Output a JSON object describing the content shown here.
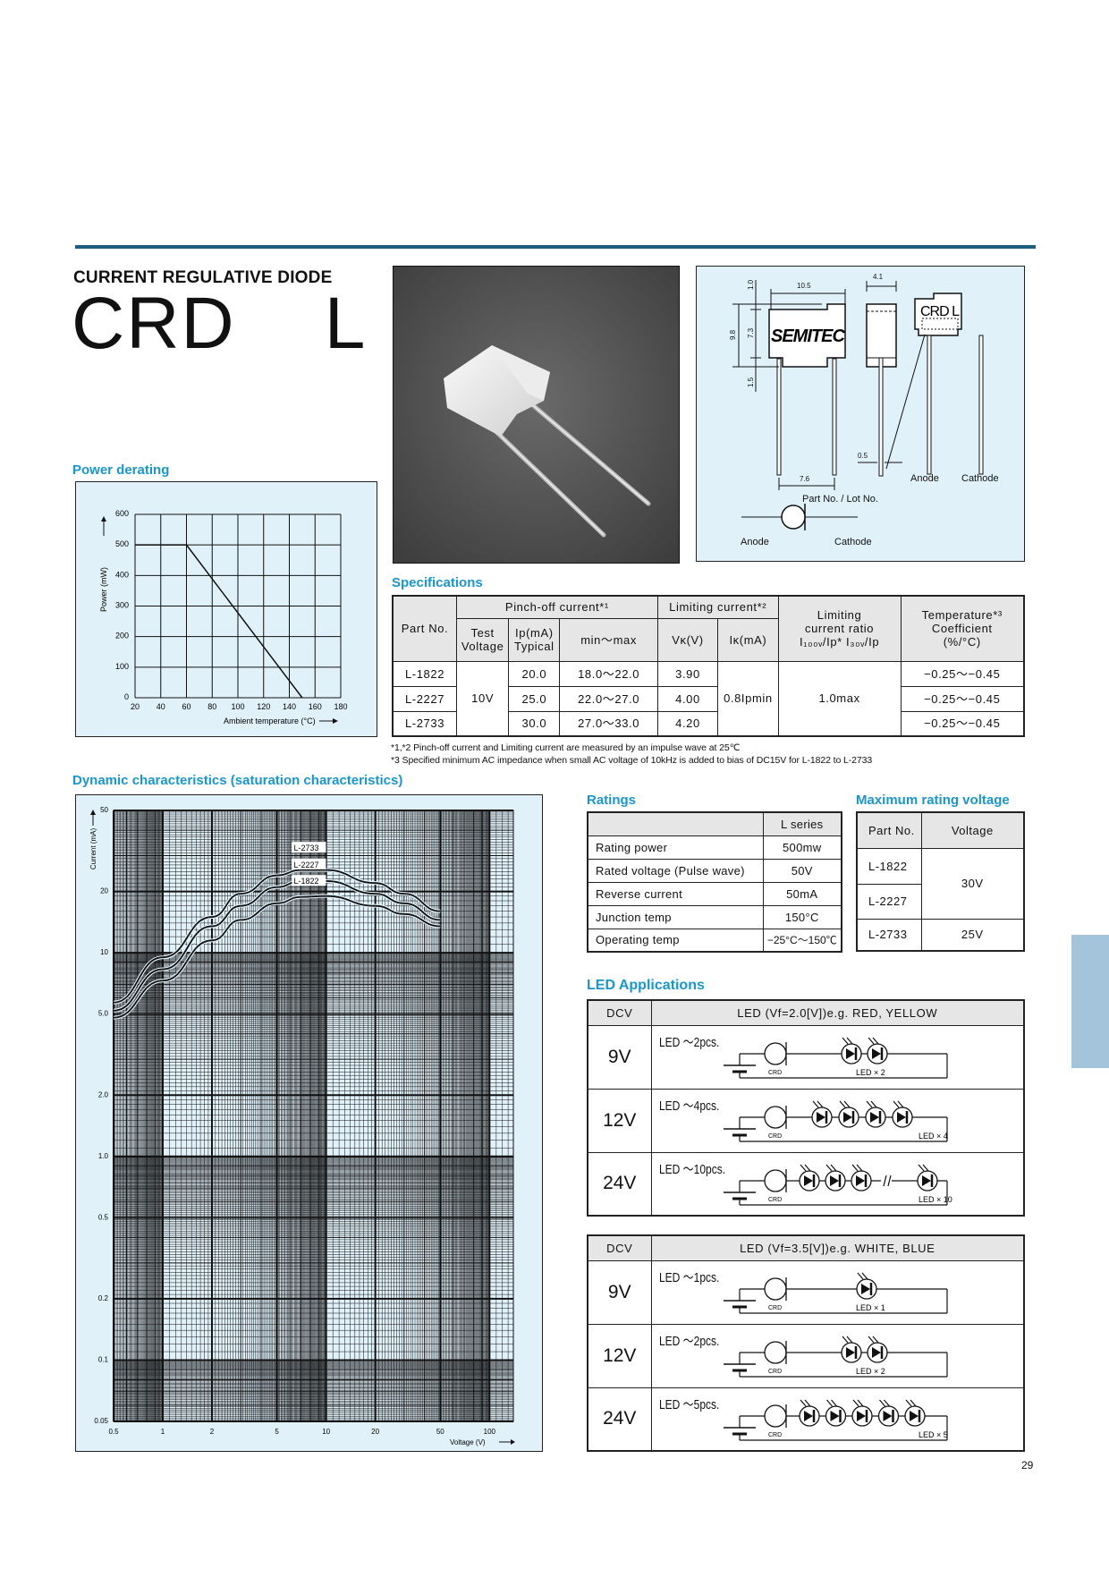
{
  "header": {
    "subtitle": "CURRENT REGULATIVE DIODE",
    "title": "CRD    L",
    "rule_color": "#1b5e80",
    "accent_color": "#1a96cc",
    "panel_color": "#e1f1fa"
  },
  "outline_drawing": {
    "logo": "SEMITEC",
    "marking": "CRD L",
    "dims": {
      "width": "10.5",
      "thickness": "4.1",
      "top": "1.0",
      "height": "9.8",
      "body": "7.3",
      "bottom": "1.5",
      "lead": "0.5",
      "pitch": "7.6"
    },
    "anode": "Anode",
    "cathode": "Cathode",
    "part_lot": "Part No. / Lot No.",
    "symbol_anode": "Anode",
    "symbol_cathode": "Cathode"
  },
  "power_derating": {
    "heading": "Power derating",
    "chart_data": {
      "type": "line",
      "xlabel": "Ambient temperature  (°C)",
      "ylabel": "Power  (mW)",
      "xlim": [
        20,
        180
      ],
      "ylim": [
        0,
        600
      ],
      "xticks": [
        "20",
        "40",
        "60",
        "80",
        "100",
        "120",
        "140",
        "160",
        "180"
      ],
      "yticks": [
        "0",
        "100",
        "200",
        "300",
        "400",
        "500",
        "600"
      ],
      "grid": true,
      "series": [
        {
          "x": [
            20,
            60,
            150
          ],
          "y": [
            500,
            500,
            0
          ]
        }
      ]
    }
  },
  "specifications": {
    "heading": "Specifications",
    "headers": {
      "part_no": "Part No.",
      "pinch_off": "Pinch-off current*¹",
      "limiting": "Limiting current*²",
      "ratio_1": "Limiting",
      "ratio_2": "current ratio",
      "ratio_3": "I₁₀₀ᵥ/Ip* I₃₀ᵥ/Ip",
      "temp_1": "Temperature*³",
      "temp_2": "Coefficient",
      "temp_3": "(%/°C)",
      "test_voltage_1": "Test",
      "test_voltage_2": "Voltage",
      "ip_1": "Ip(mA)",
      "ip_2": "Typical",
      "minmax": "min～max",
      "vk": "Vκ(V)",
      "ik": "Iκ(mA)"
    },
    "test_voltage": "10V",
    "ik": "0.8Ipmin",
    "ratio": "1.0max",
    "rows": [
      {
        "part": "L-1822",
        "ip": "20.0",
        "range": "18.0～22.0",
        "vk": "3.90",
        "temp": "−0.25～−0.45"
      },
      {
        "part": "L-2227",
        "ip": "25.0",
        "range": "22.0～27.0",
        "vk": "4.00",
        "temp": "−0.25～−0.45"
      },
      {
        "part": "L-2733",
        "ip": "30.0",
        "range": "27.0～33.0",
        "vk": "4.20",
        "temp": "−0.25～−0.45"
      }
    ],
    "notes": [
      "*1,*2 Pinch-off  current and Limiting  current  are  measured  by  an impulse  wave  at  25℃",
      "*3  Specified minimum AC impedance when small AC voltage of 10kHz is added to bias of DC15V for L-1822 to L-2733"
    ]
  },
  "dynamic": {
    "heading": "Dynamic characteristics (saturation characteristics)",
    "chart_data": {
      "type": "line",
      "xlabel": "Voltage  (V)",
      "ylabel": "Current (mA)",
      "xscale": "log",
      "yscale": "log",
      "xlim": [
        0.5,
        140
      ],
      "ylim": [
        0.05,
        50
      ],
      "xticks": [
        "0.5",
        "1",
        "2",
        "5",
        "10",
        "20",
        "50",
        "100"
      ],
      "yticks": [
        "50",
        "20",
        "10",
        "5.0",
        "2.0",
        "1.0",
        "0.5",
        "0.2",
        "0.1",
        "0.05"
      ],
      "grid": true,
      "x": [
        0.5,
        1,
        2,
        3,
        5,
        7,
        10,
        20,
        30,
        50
      ],
      "series": [
        {
          "name": "L-2733",
          "values": [
            5.7,
            9.5,
            15,
            19.5,
            24,
            25.5,
            25.5,
            22,
            19.5,
            16
          ]
        },
        {
          "name": "L-2227",
          "values": [
            5.2,
            8.3,
            13.5,
            17,
            21,
            22.5,
            22.5,
            19.5,
            17.5,
            14.5
          ]
        },
        {
          "name": "L-1822",
          "values": [
            4.8,
            7.3,
            11.5,
            14.5,
            17.5,
            18.8,
            19,
            17,
            15.5,
            13.5
          ]
        }
      ]
    }
  },
  "ratings": {
    "heading": "Ratings",
    "column": "L series",
    "rows": [
      {
        "label": "Rating power",
        "value": "500mw"
      },
      {
        "label": "Rated voltage (Pulse wave)",
        "value": "50V"
      },
      {
        "label": "Reverse current",
        "value": "50mA"
      },
      {
        "label": "Junction temp",
        "value": "150°C"
      },
      {
        "label": "Operating temp",
        "value": "−25°C～150℃"
      }
    ]
  },
  "max_voltage": {
    "heading": "Maximum rating voltage",
    "headers": {
      "part": "Part No.",
      "voltage": "Voltage"
    },
    "parts": [
      "L-1822",
      "L-2227",
      "L-2733"
    ],
    "v_30": "30V",
    "v_25": "25V"
  },
  "led_apps": {
    "heading": "LED Applications",
    "tables": [
      {
        "dcv": "DCV",
        "title": "LED (Vf=2.0[V])e.g. RED, YELLOW",
        "rows": [
          {
            "v": "9V",
            "count": "LED ～2pcs.",
            "crd": "CRD",
            "label": "LED × 2"
          },
          {
            "v": "12V",
            "count": "LED ～4pcs.",
            "crd": "CRD",
            "label": "LED × 4"
          },
          {
            "v": "24V",
            "count": "LED ～10pcs.",
            "crd": "CRD",
            "label": "LED × 10"
          }
        ]
      },
      {
        "dcv": "DCV",
        "title": "LED (Vf=3.5[V])e.g. WHITE, BLUE",
        "rows": [
          {
            "v": "9V",
            "count": "LED ～1pcs.",
            "crd": "CRD",
            "label": "LED × 1"
          },
          {
            "v": "12V",
            "count": "LED ～2pcs.",
            "crd": "CRD",
            "label": "LED × 2"
          },
          {
            "v": "24V",
            "count": "LED ～5pcs.",
            "crd": "CRD",
            "label": "LED × 5"
          }
        ]
      }
    ]
  },
  "side_tab_color": "#a3c4da",
  "page_number": "29"
}
